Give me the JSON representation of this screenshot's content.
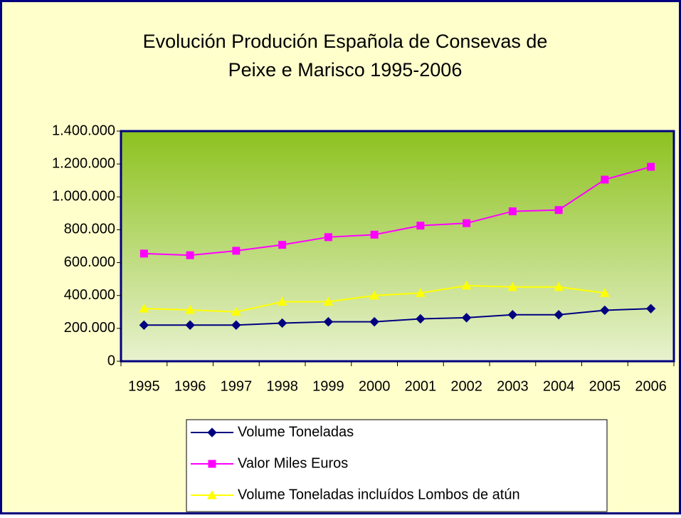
{
  "chart_data": {
    "type": "line",
    "title": [
      "Evolución Produción Española de Consevas de",
      "Peixe e Marisco 1995-2006"
    ],
    "categories": [
      "1995",
      "1996",
      "1997",
      "1998",
      "1999",
      "2000",
      "2001",
      "2002",
      "2003",
      "2004",
      "2005",
      "2006"
    ],
    "series": [
      {
        "name": "Volume Toneladas",
        "color": "#000080",
        "marker": "diamond",
        "values": [
          220000,
          220000,
          220000,
          232000,
          240000,
          240000,
          258000,
          265000,
          283000,
          283000,
          310000,
          320000
        ]
      },
      {
        "name": "Valor Miles Euros",
        "color": "#FF00FF",
        "marker": "square",
        "values": [
          655000,
          645000,
          672000,
          708000,
          755000,
          770000,
          825000,
          840000,
          912000,
          920000,
          1105000,
          1183000
        ]
      },
      {
        "name": "Volume Toneladas incluídos Lombos de atún",
        "color": "#FFFF00",
        "marker": "triangle",
        "values": [
          320000,
          312000,
          300000,
          362000,
          362000,
          400000,
          415000,
          460000,
          452000,
          452000,
          415000,
          null
        ]
      }
    ],
    "ylim": [
      0,
      1400000
    ],
    "yticks": [
      0,
      {
        "value": 200000,
        "label": "200.000"
      },
      {
        "value": 400000,
        "label": "400.000"
      },
      {
        "value": 600000,
        "label": "600.000"
      },
      {
        "value": 800000,
        "label": "800.000"
      },
      {
        "value": 1000000,
        "label": "1.000.000"
      },
      {
        "value": 1200000,
        "label": "1.200.000"
      },
      {
        "value": 1400000,
        "label": "1.400.000"
      }
    ],
    "grid": false,
    "legend": "bottom"
  }
}
